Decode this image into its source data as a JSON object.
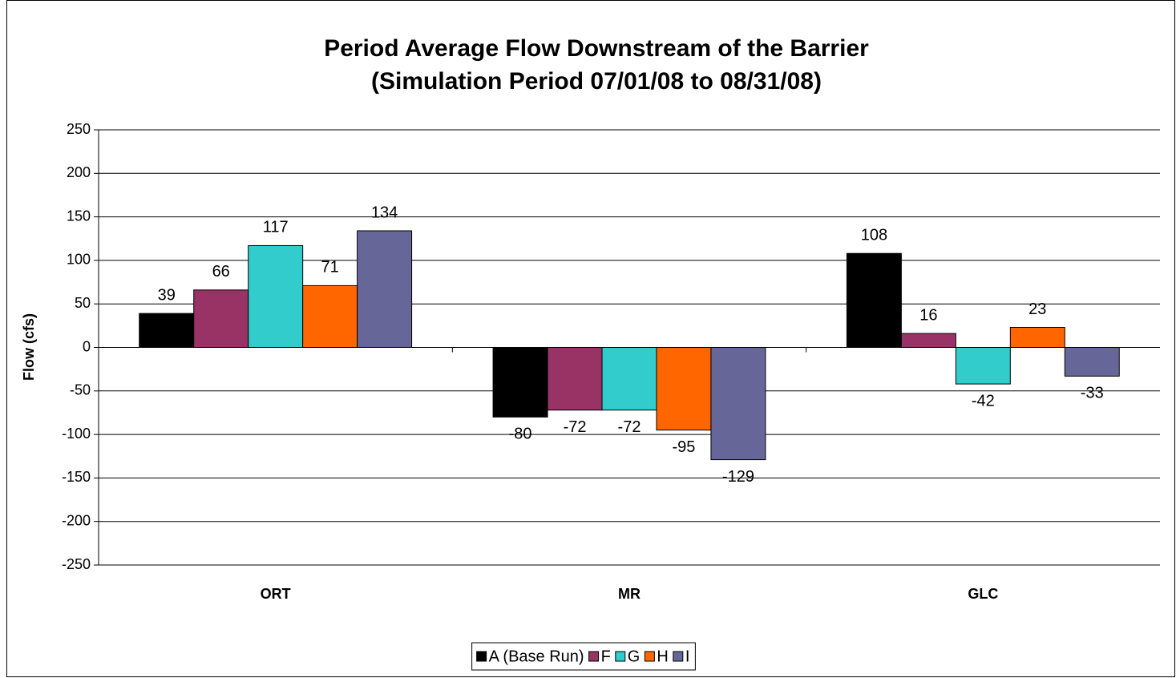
{
  "chart_data": {
    "type": "bar",
    "title": "Period Average Flow Downstream of the Barrier",
    "subtitle": "(Simulation Period 07/01/08 to 08/31/08)",
    "y_label": "Flow (cfs)",
    "categories": [
      "ORT",
      "MR",
      "GLC"
    ],
    "series": [
      {
        "name": "A (Base Run)",
        "color": "#000000",
        "values": [
          39,
          -80,
          108
        ]
      },
      {
        "name": "F",
        "color": "#993366",
        "values": [
          66,
          -72,
          16
        ]
      },
      {
        "name": "G",
        "color": "#33cccc",
        "values": [
          117,
          -72,
          -42
        ]
      },
      {
        "name": "H",
        "color": "#ff6600",
        "values": [
          71,
          -95,
          23
        ]
      },
      {
        "name": "I",
        "color": "#666699",
        "values": [
          134,
          -129,
          -33
        ]
      }
    ],
    "ylim": [
      -250,
      250
    ],
    "yticks": [
      -250,
      -200,
      -150,
      -100,
      -50,
      0,
      50,
      100,
      150,
      200,
      250
    ],
    "grid": true,
    "legend": "bottom"
  }
}
